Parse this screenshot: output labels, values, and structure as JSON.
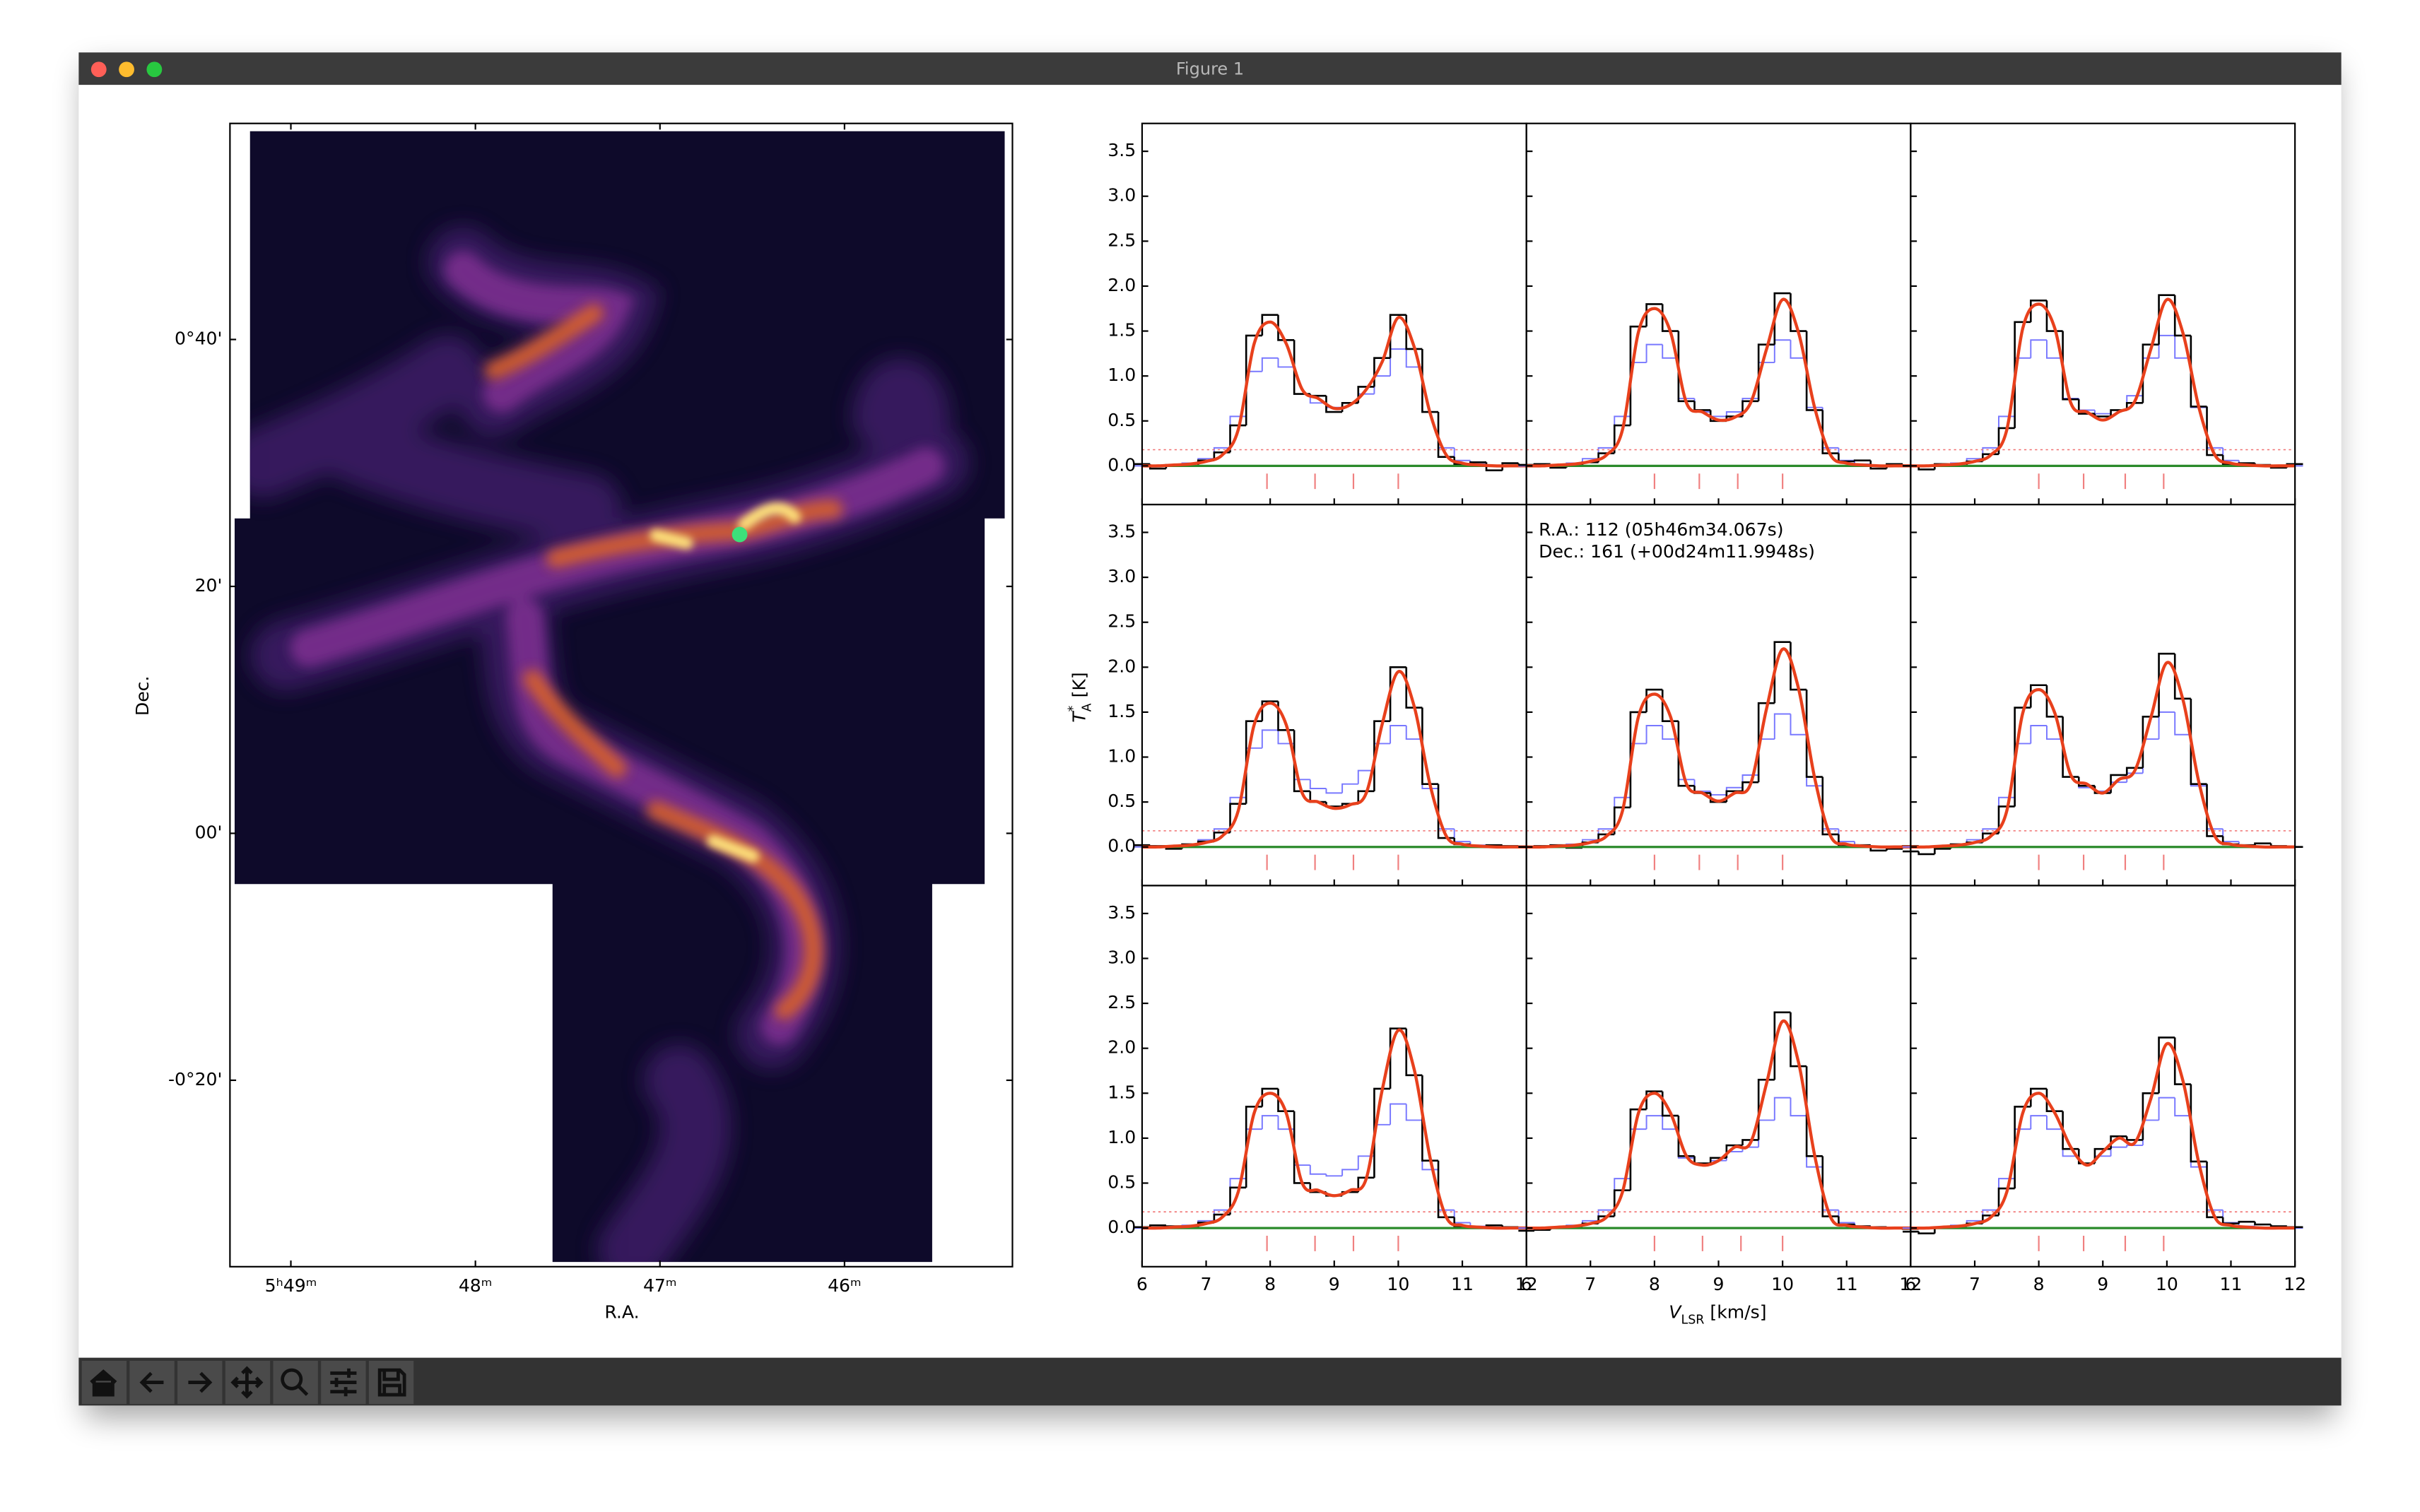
{
  "window": {
    "title": "Figure 1"
  },
  "chart_data": [
    {
      "type": "image",
      "xlabel": "R.A.",
      "ylabel": "Dec.",
      "xlim": [
        349.33,
        345.09
      ],
      "ylim": [
        -35.1,
        57.5
      ],
      "xticks": [
        {
          "value": 349,
          "label": "5ʰ49ᵐ"
        },
        {
          "value": 348,
          "label": "48ᵐ"
        },
        {
          "value": 347,
          "label": "47ᵐ"
        },
        {
          "value": 346,
          "label": "46ᵐ"
        }
      ],
      "yticks": [
        {
          "value": 40,
          "label": "0°40'"
        },
        {
          "value": 20,
          "label": "20'"
        },
        {
          "value": 0,
          "label": "00'"
        },
        {
          "value": -20,
          "label": "-0°20'"
        }
      ],
      "marker": {
        "x": 346.568,
        "y": 24.2,
        "color": "#3de07a"
      }
    },
    {
      "type": "spectra_grid",
      "xlabel": {
        "symbol": "V",
        "subscript": "LSR",
        "unit": " [km/s]"
      },
      "ylabel": {
        "symbol": "T",
        "superscript": "*",
        "subscript": "A",
        "unit": " [K]"
      },
      "xlim": [
        6,
        12
      ],
      "ylim": [
        -0.43,
        3.81
      ],
      "xticks": [
        6,
        7,
        8,
        9,
        10,
        11,
        12
      ],
      "yticks": [
        {
          "value": 0,
          "label": "0.0"
        },
        {
          "value": 0.5,
          "label": "0.5"
        },
        {
          "value": 1,
          "label": "1.0"
        },
        {
          "value": 1.5,
          "label": "1.5"
        },
        {
          "value": 2,
          "label": "2.0"
        },
        {
          "value": 2.5,
          "label": "2.5"
        },
        {
          "value": 3,
          "label": "3.0"
        },
        {
          "value": 3.5,
          "label": "3.5"
        }
      ],
      "threshold": 0.18,
      "colors": {
        "observed": "#000000",
        "model": "#7878ff",
        "fit": "#e8401c",
        "threshold": "#f07070",
        "baseline": "#2a8a2a",
        "centers": "#f08080"
      },
      "x": [
        6,
        6.25,
        6.5,
        6.75,
        7,
        7.25,
        7.5,
        7.75,
        8,
        8.25,
        8.5,
        8.75,
        9,
        9.25,
        9.5,
        9.75,
        10,
        10.25,
        10.5,
        10.75,
        11,
        11.25,
        11.5,
        11.75,
        12
      ],
      "panels": [
        {
          "observed": [
            0.02,
            -0.03,
            0.01,
            0,
            0.06,
            0.15,
            0.45,
            1.45,
            1.68,
            1.4,
            0.8,
            0.78,
            0.6,
            0.7,
            0.88,
            1.2,
            1.68,
            1.3,
            0.6,
            0.1,
            0.02,
            0.04,
            -0.05,
            0.03,
            0.01
          ],
          "model": [
            0,
            0,
            0.01,
            0.03,
            0.08,
            0.2,
            0.55,
            1.05,
            1.2,
            1.1,
            0.8,
            0.7,
            0.65,
            0.7,
            0.8,
            1,
            1.3,
            1.1,
            0.6,
            0.2,
            0.06,
            0.02,
            0,
            0,
            0
          ],
          "fit": [
            0,
            0,
            0.01,
            0.02,
            0.05,
            0.12,
            0.4,
            1.36,
            1.6,
            1.36,
            0.85,
            0.75,
            0.64,
            0.68,
            0.85,
            1.16,
            1.65,
            1.32,
            0.58,
            0.12,
            0.03,
            0.01,
            0,
            0,
            0
          ],
          "component_centers": [
            7.95,
            8.7,
            9.3,
            10.0
          ]
        },
        {
          "observed": [
            0.01,
            0.02,
            -0.02,
            0.01,
            0.04,
            0.14,
            0.45,
            1.55,
            1.8,
            1.5,
            0.72,
            0.62,
            0.5,
            0.55,
            0.72,
            1.35,
            1.92,
            1.5,
            0.62,
            0.14,
            0.05,
            0.06,
            -0.03,
            0.02,
            0
          ],
          "model": [
            0,
            0,
            0.01,
            0.03,
            0.08,
            0.2,
            0.55,
            1.15,
            1.35,
            1.2,
            0.75,
            0.6,
            0.55,
            0.6,
            0.75,
            1.15,
            1.4,
            1.2,
            0.65,
            0.2,
            0.06,
            0.02,
            0,
            0,
            0
          ],
          "fit": [
            0,
            0,
            0.01,
            0.02,
            0.05,
            0.12,
            0.4,
            1.49,
            1.75,
            1.49,
            0.7,
            0.6,
            0.51,
            0.54,
            0.7,
            1.3,
            1.85,
            1.48,
            0.65,
            0.12,
            0.03,
            0.01,
            0,
            0,
            0
          ],
          "component_centers": [
            8.0,
            8.7,
            9.3,
            10.0
          ]
        },
        {
          "observed": [
            0,
            -0.04,
            0.02,
            0,
            0.05,
            0.13,
            0.42,
            1.6,
            1.84,
            1.5,
            0.74,
            0.58,
            0.55,
            0.62,
            0.7,
            1.35,
            1.9,
            1.45,
            0.66,
            0.12,
            0.02,
            0.03,
            0.01,
            -0.02,
            0.02
          ],
          "model": [
            0,
            0,
            0.01,
            0.03,
            0.08,
            0.2,
            0.55,
            1.2,
            1.4,
            1.2,
            0.75,
            0.62,
            0.58,
            0.62,
            0.78,
            1.2,
            1.45,
            1.2,
            0.65,
            0.2,
            0.06,
            0.02,
            0,
            0,
            0
          ],
          "fit": [
            0,
            0,
            0.01,
            0.02,
            0.05,
            0.12,
            0.4,
            1.53,
            1.8,
            1.53,
            0.7,
            0.6,
            0.51,
            0.6,
            0.72,
            1.3,
            1.85,
            1.48,
            0.65,
            0.12,
            0.03,
            0.01,
            0,
            0,
            0
          ],
          "component_centers": [
            8.0,
            8.7,
            9.35,
            9.95
          ]
        },
        {
          "observed": [
            0.02,
            0.01,
            -0.02,
            0.03,
            0.06,
            0.16,
            0.48,
            1.4,
            1.62,
            1.3,
            0.62,
            0.5,
            0.45,
            0.48,
            0.62,
            1.4,
            2,
            1.55,
            0.7,
            0.1,
            0.03,
            0.01,
            0.02,
            0.01,
            0
          ],
          "model": [
            0,
            0,
            0.01,
            0.03,
            0.08,
            0.2,
            0.55,
            1.1,
            1.3,
            1.15,
            0.75,
            0.65,
            0.6,
            0.7,
            0.85,
            1.15,
            1.35,
            1.2,
            0.65,
            0.2,
            0.06,
            0.02,
            0,
            0,
            0
          ],
          "fit": [
            0,
            0,
            0.01,
            0.02,
            0.05,
            0.12,
            0.4,
            1.36,
            1.6,
            1.36,
            0.6,
            0.5,
            0.43,
            0.47,
            0.6,
            1.37,
            1.95,
            1.56,
            0.68,
            0.12,
            0.03,
            0.01,
            0,
            0,
            0
          ],
          "component_centers": [
            7.95,
            8.7,
            9.3,
            10.0
          ]
        },
        {
          "observed": [
            0,
            0.01,
            0.02,
            -0.01,
            0.05,
            0.14,
            0.44,
            1.5,
            1.75,
            1.4,
            0.68,
            0.6,
            0.5,
            0.62,
            0.72,
            1.6,
            2.28,
            1.75,
            0.78,
            0.14,
            0.02,
            0.02,
            -0.04,
            -0.02,
            0.01
          ],
          "model": [
            0,
            0,
            0.01,
            0.03,
            0.08,
            0.2,
            0.55,
            1.15,
            1.35,
            1.2,
            0.75,
            0.62,
            0.58,
            0.66,
            0.8,
            1.2,
            1.48,
            1.25,
            0.68,
            0.2,
            0.06,
            0.02,
            0,
            0,
            0
          ],
          "fit": [
            0,
            0,
            0.01,
            0.02,
            0.05,
            0.12,
            0.4,
            1.45,
            1.7,
            1.45,
            0.7,
            0.6,
            0.51,
            0.6,
            0.7,
            1.54,
            2.2,
            1.76,
            0.77,
            0.12,
            0.03,
            0.01,
            0,
            0,
            0
          ],
          "component_centers": [
            8.0,
            8.7,
            9.3,
            10.0
          ],
          "annotation": [
            "R.A.: 112 (05h46m34.067s)",
            "Dec.: 161 (+00d24m11.9948s)"
          ]
        },
        {
          "observed": [
            -0.05,
            -0.08,
            -0.02,
            0.03,
            0.05,
            0.15,
            0.45,
            1.55,
            1.8,
            1.45,
            0.78,
            0.68,
            0.6,
            0.8,
            0.88,
            1.45,
            2.15,
            1.65,
            0.7,
            0.12,
            0.03,
            0.02,
            0.04,
            0.01,
            0
          ],
          "model": [
            0,
            0,
            0.01,
            0.03,
            0.08,
            0.2,
            0.55,
            1.15,
            1.35,
            1.2,
            0.78,
            0.66,
            0.62,
            0.72,
            0.82,
            1.2,
            1.5,
            1.25,
            0.68,
            0.2,
            0.06,
            0.02,
            0,
            0,
            0
          ],
          "fit": [
            0,
            0,
            0.01,
            0.02,
            0.05,
            0.12,
            0.4,
            1.49,
            1.75,
            1.49,
            0.8,
            0.7,
            0.6,
            0.75,
            0.85,
            1.44,
            2.05,
            1.64,
            0.72,
            0.12,
            0.03,
            0.01,
            0,
            0,
            0
          ],
          "component_centers": [
            8.0,
            8.7,
            9.35,
            9.95
          ]
        },
        {
          "observed": [
            0.01,
            0.03,
            0.02,
            0,
            0.06,
            0.15,
            0.45,
            1.35,
            1.55,
            1.3,
            0.5,
            0.4,
            0.36,
            0.4,
            0.56,
            1.55,
            2.22,
            1.7,
            0.75,
            0.12,
            0.02,
            0.01,
            0.03,
            0.01,
            0
          ],
          "model": [
            0,
            0,
            0.01,
            0.03,
            0.08,
            0.2,
            0.55,
            1.1,
            1.25,
            1.1,
            0.7,
            0.6,
            0.58,
            0.65,
            0.8,
            1.15,
            1.38,
            1.2,
            0.65,
            0.2,
            0.06,
            0.02,
            0,
            0,
            0
          ],
          "fit": [
            0,
            0,
            0.01,
            0.02,
            0.05,
            0.12,
            0.4,
            1.28,
            1.5,
            1.28,
            0.5,
            0.42,
            0.36,
            0.42,
            0.55,
            1.54,
            2.2,
            1.76,
            0.77,
            0.12,
            0.03,
            0.01,
            0,
            0,
            0
          ],
          "component_centers": [
            7.95,
            8.7,
            9.3,
            10.0
          ]
        },
        {
          "observed": [
            -0.03,
            -0.02,
            0,
            0.02,
            0.05,
            0.13,
            0.42,
            1.32,
            1.52,
            1.25,
            0.8,
            0.72,
            0.78,
            0.92,
            0.98,
            1.65,
            2.4,
            1.8,
            0.8,
            0.13,
            0.04,
            0.02,
            0.01,
            0,
            -0.01
          ],
          "model": [
            0,
            0,
            0.01,
            0.03,
            0.08,
            0.2,
            0.55,
            1.1,
            1.25,
            1.1,
            0.78,
            0.72,
            0.75,
            0.85,
            0.9,
            1.2,
            1.45,
            1.25,
            0.68,
            0.2,
            0.06,
            0.02,
            0,
            0,
            0
          ],
          "fit": [
            0,
            0,
            0.01,
            0.02,
            0.05,
            0.12,
            0.4,
            1.28,
            1.5,
            1.28,
            0.8,
            0.7,
            0.75,
            0.9,
            0.95,
            1.61,
            2.3,
            1.84,
            0.81,
            0.12,
            0.03,
            0.01,
            0,
            0,
            0
          ],
          "component_centers": [
            8.0,
            8.75,
            9.35,
            10.0
          ]
        },
        {
          "observed": [
            -0.04,
            -0.06,
            0,
            0.02,
            0.05,
            0.14,
            0.44,
            1.35,
            1.55,
            1.3,
            0.88,
            0.72,
            0.88,
            1.02,
            0.98,
            1.5,
            2.12,
            1.6,
            0.74,
            0.12,
            0.05,
            0.07,
            0.04,
            0.02,
            0.01
          ],
          "model": [
            0,
            0,
            0.01,
            0.03,
            0.08,
            0.2,
            0.55,
            1.1,
            1.25,
            1.1,
            0.8,
            0.72,
            0.8,
            0.9,
            0.92,
            1.2,
            1.45,
            1.25,
            0.68,
            0.2,
            0.06,
            0.02,
            0,
            0,
            0
          ],
          "fit": [
            0,
            0,
            0.01,
            0.02,
            0.05,
            0.12,
            0.4,
            1.28,
            1.5,
            1.28,
            0.9,
            0.7,
            0.85,
            1,
            0.95,
            1.44,
            2.05,
            1.64,
            0.72,
            0.12,
            0.03,
            0.01,
            0,
            0,
            0
          ],
          "component_centers": [
            8.0,
            8.7,
            9.35,
            9.95
          ]
        }
      ]
    }
  ]
}
